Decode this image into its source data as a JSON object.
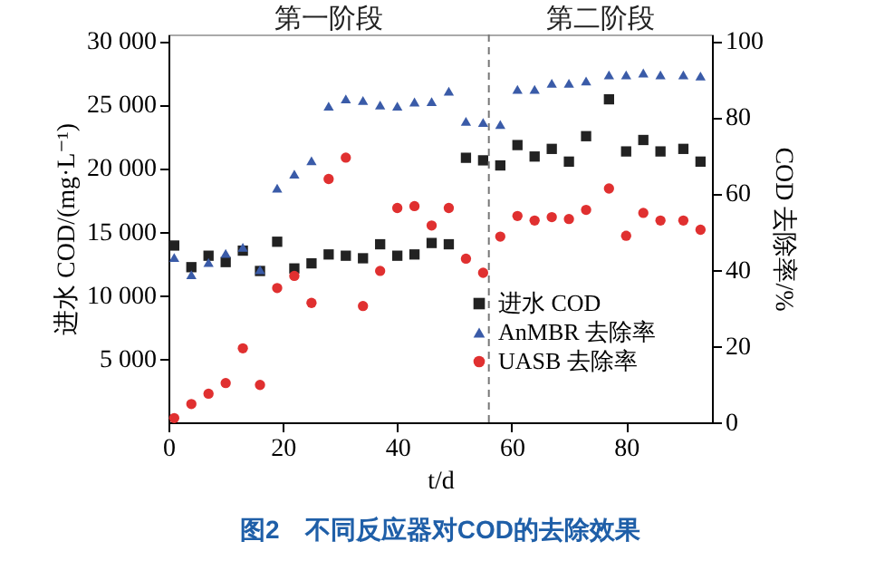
{
  "chart_data": {
    "type": "scatter",
    "title": "图2　不同反应器对COD的去除效果",
    "xlabel": "t/d",
    "ylabel": "进水 COD/(mg·L⁻¹)",
    "y2label": "COD 去除率/%",
    "x": [
      1,
      4,
      7,
      10,
      13,
      16,
      19,
      22,
      25,
      28,
      31,
      34,
      37,
      40,
      43,
      46,
      49,
      52,
      55,
      58,
      61,
      64,
      67,
      70,
      73,
      77,
      80,
      83,
      86,
      90,
      93
    ],
    "series": [
      {
        "name": "进水 COD",
        "color": "#222222",
        "marker": "square",
        "values": [
          13900,
          12200,
          13100,
          12600,
          13500,
          11900,
          14200,
          12100,
          12500,
          13200,
          13100,
          12900,
          14000,
          13100,
          13200,
          14100,
          14000,
          20800,
          20600,
          20200,
          21800,
          20900,
          21500,
          20500,
          22500,
          25400,
          21300,
          22200,
          21300,
          21500,
          20500
        ]
      },
      {
        "name": "AnMBR 去除率",
        "color": "#3a5ba8",
        "marker": "triangle",
        "axis": "y2",
        "values": [
          43.2,
          38.7,
          41.9,
          44.3,
          45.9,
          40,
          61.4,
          65.1,
          68.6,
          82.9,
          84.8,
          84.4,
          83.2,
          82.9,
          84,
          84.1,
          86.8,
          78.9,
          78.6,
          78.1,
          87.3,
          87.3,
          88.9,
          88.9,
          89.5,
          91.1,
          91.1,
          91.6,
          91.1,
          91.1,
          90.8
        ]
      },
      {
        "name": "UASB 去除率",
        "color": "#e03030",
        "marker": "circle",
        "axis": "y2",
        "values": [
          1.1,
          4.8,
          7.5,
          10.3,
          19.4,
          9.8,
          35.2,
          38.4,
          31.3,
          63.8,
          69.4,
          30.5,
          39.7,
          56.2,
          56.7,
          51.6,
          56.2,
          42.9,
          39.2,
          48.7,
          54.1,
          52.9,
          53.8,
          53.3,
          55.7,
          61.3,
          48.9,
          54.9,
          52.9,
          52.9,
          50.5
        ]
      }
    ],
    "xlim": [
      0,
      95
    ],
    "xticks": [
      0,
      20,
      40,
      60,
      80
    ],
    "ylim": [
      0,
      30500
    ],
    "yticks": [
      {
        "value": 5000,
        "label": "5 000"
      },
      {
        "value": 10000,
        "label": "10 000"
      },
      {
        "value": 15000,
        "label": "15 000"
      },
      {
        "value": 20000,
        "label": "20 000"
      },
      {
        "value": 25000,
        "label": "25 000"
      },
      {
        "value": 30000,
        "label": "30 000"
      }
    ],
    "y2lim": [
      0,
      101.7
    ],
    "y2ticks": [
      0,
      20,
      40,
      60,
      80,
      100
    ],
    "ref_lines": [
      {
        "axis": "x",
        "value": 56,
        "color": "#777777",
        "line_style": "dashed"
      }
    ],
    "annotations": [
      "第一阶段",
      "第二阶段"
    ],
    "legend": "bottom right"
  }
}
